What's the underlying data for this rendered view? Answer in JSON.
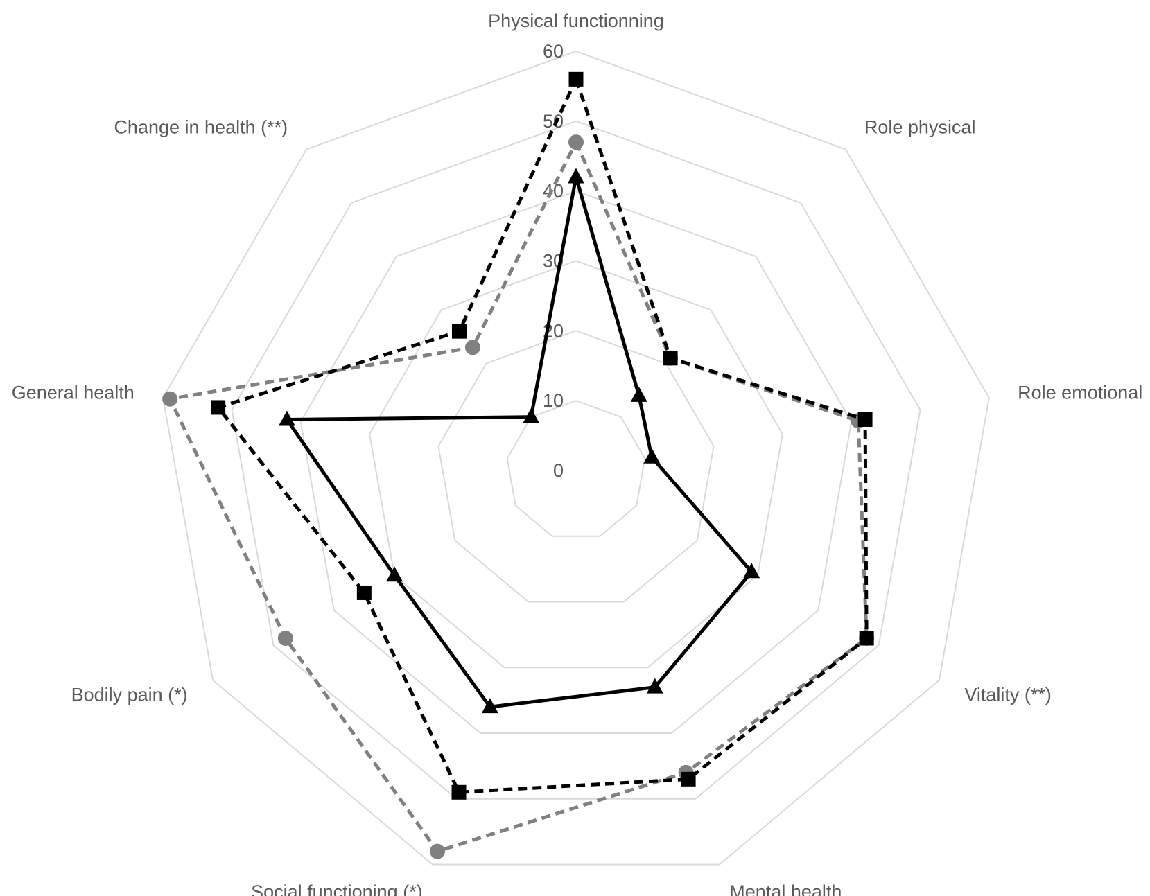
{
  "chart_data": {
    "type": "radar",
    "categories": [
      "Physical functionning",
      "Role physical",
      "Role emotional",
      "Vitality (**)",
      "Mental health",
      "Social functioning (*)",
      "Bodily pain (*)",
      "General health",
      "Change in health (**)"
    ],
    "r_ticks": [
      "0",
      "10",
      "20",
      "30",
      "40",
      "50",
      "60"
    ],
    "rlim": [
      0,
      60
    ],
    "grid": true,
    "legend": "none",
    "series": [
      {
        "marker": "triangle",
        "line_style": "solid",
        "color": "#000000",
        "values": [
          42,
          14,
          11,
          29,
          33,
          36,
          30,
          42,
          10
        ]
      },
      {
        "marker": "circle",
        "line_style": "dashed",
        "color": "#808080",
        "values": [
          47,
          21,
          41,
          48,
          46,
          58,
          48,
          59,
          23
        ]
      },
      {
        "marker": "square",
        "line_style": "dashed",
        "color": "#000000",
        "values": [
          56,
          21,
          42,
          48,
          47,
          49,
          35,
          52,
          26
        ]
      }
    ]
  }
}
